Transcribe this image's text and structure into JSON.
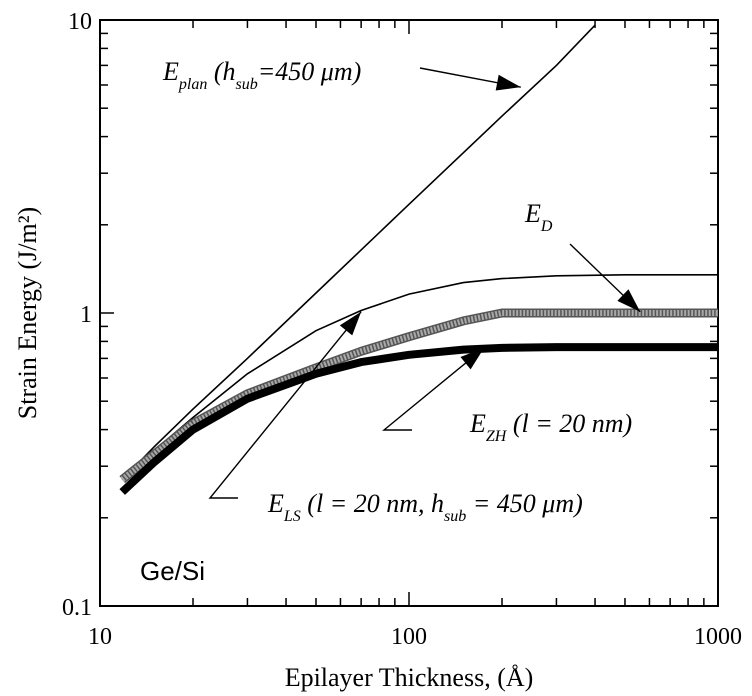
{
  "chart_data": {
    "type": "line",
    "xlabel": "Epilayer Thickness, (Å)",
    "ylabel": "Strain Energy (J/m²)",
    "xscale": "log",
    "yscale": "log",
    "xlim": [
      10,
      1000
    ],
    "ylim": [
      0.1,
      10
    ],
    "x_ticks": [
      "10",
      "100",
      "1000"
    ],
    "y_ticks": [
      "0.1",
      "1",
      "10"
    ],
    "inset_label": "Ge/Si",
    "series": [
      {
        "key": "plan",
        "style": "thin",
        "x": [
          11.8,
          15,
          20,
          30,
          50,
          100,
          200,
          300,
          400
        ],
        "y": [
          0.27,
          0.35,
          0.47,
          0.7,
          1.17,
          2.35,
          4.7,
          7.0,
          9.6
        ]
      },
      {
        "key": "LS",
        "style": "thin",
        "x": [
          11.8,
          15,
          20,
          30,
          50,
          70,
          100,
          150,
          200,
          300,
          500,
          1000
        ],
        "y": [
          0.27,
          0.34,
          0.44,
          0.62,
          0.87,
          1.02,
          1.16,
          1.27,
          1.31,
          1.34,
          1.35,
          1.35
        ]
      },
      {
        "key": "D",
        "style": "gray-band",
        "x": [
          11.8,
          15,
          20,
          30,
          50,
          70,
          100,
          150,
          200,
          300,
          500,
          1000
        ],
        "y": [
          0.27,
          0.33,
          0.42,
          0.53,
          0.65,
          0.74,
          0.83,
          0.94,
          1.0,
          1.0,
          1.0,
          1.0
        ]
      },
      {
        "key": "ZH",
        "style": "thick",
        "x": [
          11.8,
          15,
          20,
          30,
          50,
          70,
          100,
          150,
          200,
          300,
          500,
          1000
        ],
        "y": [
          0.245,
          0.31,
          0.4,
          0.51,
          0.62,
          0.68,
          0.72,
          0.75,
          0.76,
          0.765,
          0.765,
          0.765
        ]
      }
    ],
    "annotations": [
      {
        "key": "plan",
        "main": "E",
        "sub": "plan",
        "rest_open": " (h",
        "rest_sub": "sub",
        "rest_tail": "=450 μm)",
        "arrow_to": [
          230,
          5.9
        ]
      },
      {
        "key": "D",
        "main": "E",
        "sub": "D",
        "arrow_to": [
          560,
          1.01
        ]
      },
      {
        "key": "ZH",
        "main": "E",
        "sub": "ZH",
        "rest": " (l = 20 nm)",
        "arrow_to": [
          175,
          0.76
        ]
      },
      {
        "key": "LS",
        "main": "E",
        "sub": "LS",
        "rest_open": " (l = 20 nm, h",
        "rest_sub": "sub",
        "rest_tail": " = 450 μm)",
        "arrow_to": [
          70,
          1.01
        ]
      }
    ]
  }
}
